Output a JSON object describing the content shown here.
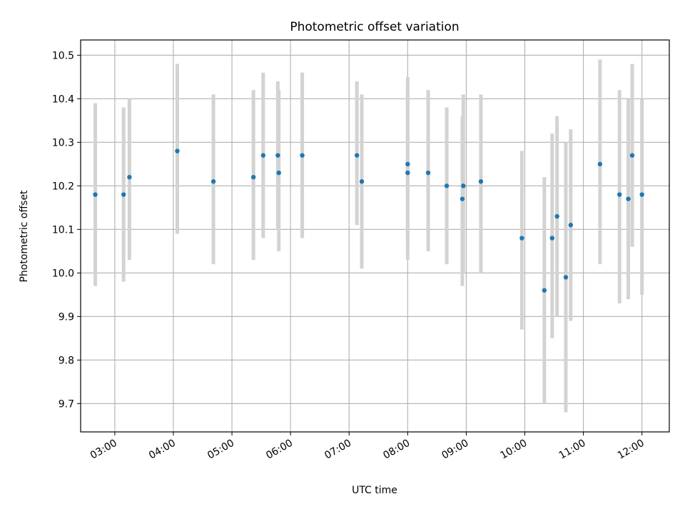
{
  "chart_data": {
    "type": "scatter",
    "title": "Photometric offset variation",
    "xlabel": "UTC time",
    "ylabel": "Photometric offset",
    "grid": true,
    "legend": "none",
    "xlim": [
      "02:25",
      "12:28"
    ],
    "ylim": [
      9.635,
      10.535
    ],
    "x_ticks": [
      "03:00",
      "04:00",
      "05:00",
      "06:00",
      "07:00",
      "08:00",
      "09:00",
      "10:00",
      "11:00",
      "12:00"
    ],
    "y_ticks": [
      9.7,
      9.8,
      9.9,
      10.0,
      10.1,
      10.2,
      10.3,
      10.4,
      10.5
    ],
    "y_tick_labels": [
      "9.7",
      "9.8",
      "9.9",
      "10.0",
      "10.1",
      "10.2",
      "10.3",
      "10.4",
      "10.5"
    ],
    "series": [
      {
        "x": [
          "02:40",
          "03:09",
          "03:15",
          "04:04",
          "04:41",
          "05:22",
          "05:32",
          "05:47",
          "05:48",
          "06:12",
          "07:08",
          "07:13",
          "08:00",
          "08:00",
          "08:21",
          "08:40",
          "08:56",
          "08:57",
          "09:15",
          "09:57",
          "10:20",
          "10:28",
          "10:33",
          "10:42",
          "10:47",
          "11:17",
          "11:37",
          "11:46",
          "11:50",
          "12:00"
        ],
        "y": [
          10.18,
          10.18,
          10.22,
          10.28,
          10.21,
          10.22,
          10.27,
          10.27,
          10.23,
          10.27,
          10.27,
          10.21,
          10.25,
          10.23,
          10.23,
          10.2,
          10.17,
          10.2,
          10.21,
          10.08,
          9.96,
          10.08,
          10.13,
          9.99,
          10.11,
          10.25,
          10.18,
          10.17,
          10.27,
          10.18
        ],
        "err_low": [
          9.97,
          9.98,
          10.03,
          10.09,
          10.02,
          10.03,
          10.08,
          10.1,
          10.05,
          10.08,
          10.11,
          10.01,
          10.03,
          10.07,
          10.05,
          10.02,
          9.97,
          10.0,
          10.0,
          9.87,
          9.7,
          9.85,
          9.9,
          9.68,
          9.89,
          10.02,
          9.93,
          9.94,
          10.06,
          9.95
        ],
        "err_high": [
          10.39,
          10.38,
          10.4,
          10.48,
          10.41,
          10.42,
          10.46,
          10.44,
          10.42,
          10.46,
          10.44,
          10.41,
          10.45,
          10.43,
          10.42,
          10.38,
          10.36,
          10.41,
          10.41,
          10.28,
          10.22,
          10.32,
          10.36,
          10.3,
          10.33,
          10.49,
          10.42,
          10.4,
          10.48,
          10.4
        ]
      }
    ],
    "colors": {
      "points": "#1f77b4",
      "errorbars": "#d3d3d3",
      "grid": "#b0b0b0",
      "axes": "#000000"
    }
  }
}
